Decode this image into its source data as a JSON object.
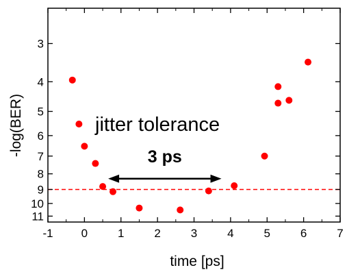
{
  "chart_data": {
    "type": "scatter",
    "title": "",
    "xlabel": "time [ps]",
    "ylabel": "-log(BER)",
    "xlim": [
      -1,
      7
    ],
    "ylim": [
      11.5,
      2.3
    ],
    "y_scale": "-log(BER), inverted log-log axis",
    "x_ticks": [
      -1,
      0,
      1,
      2,
      3,
      4,
      5,
      6,
      7
    ],
    "y_ticks": [
      3,
      4,
      5,
      6,
      7,
      8,
      9,
      10,
      11
    ],
    "grid": false,
    "marker_color": "#ff0000",
    "points": [
      {
        "x": -0.33,
        "y": 3.95
      },
      {
        "x": -0.15,
        "y": 5.5
      },
      {
        "x": 0.0,
        "y": 6.5
      },
      {
        "x": 0.3,
        "y": 7.4
      },
      {
        "x": 0.5,
        "y": 8.8
      },
      {
        "x": 0.78,
        "y": 9.15
      },
      {
        "x": 1.5,
        "y": 10.35
      },
      {
        "x": 2.62,
        "y": 10.5
      },
      {
        "x": 3.4,
        "y": 9.1
      },
      {
        "x": 4.1,
        "y": 8.75
      },
      {
        "x": 4.93,
        "y": 7.0
      },
      {
        "x": 5.3,
        "y": 4.15
      },
      {
        "x": 5.3,
        "y": 4.7
      },
      {
        "x": 5.6,
        "y": 4.6
      },
      {
        "x": 6.12,
        "y": 3.45
      }
    ],
    "threshold": {
      "y": 9.0,
      "color": "#ff0000",
      "style": "dashed"
    },
    "annotations": {
      "label": "jitter tolerance",
      "span_label": "3 ps",
      "span_x": [
        0.65,
        3.75
      ],
      "span_y": 8.3
    }
  }
}
